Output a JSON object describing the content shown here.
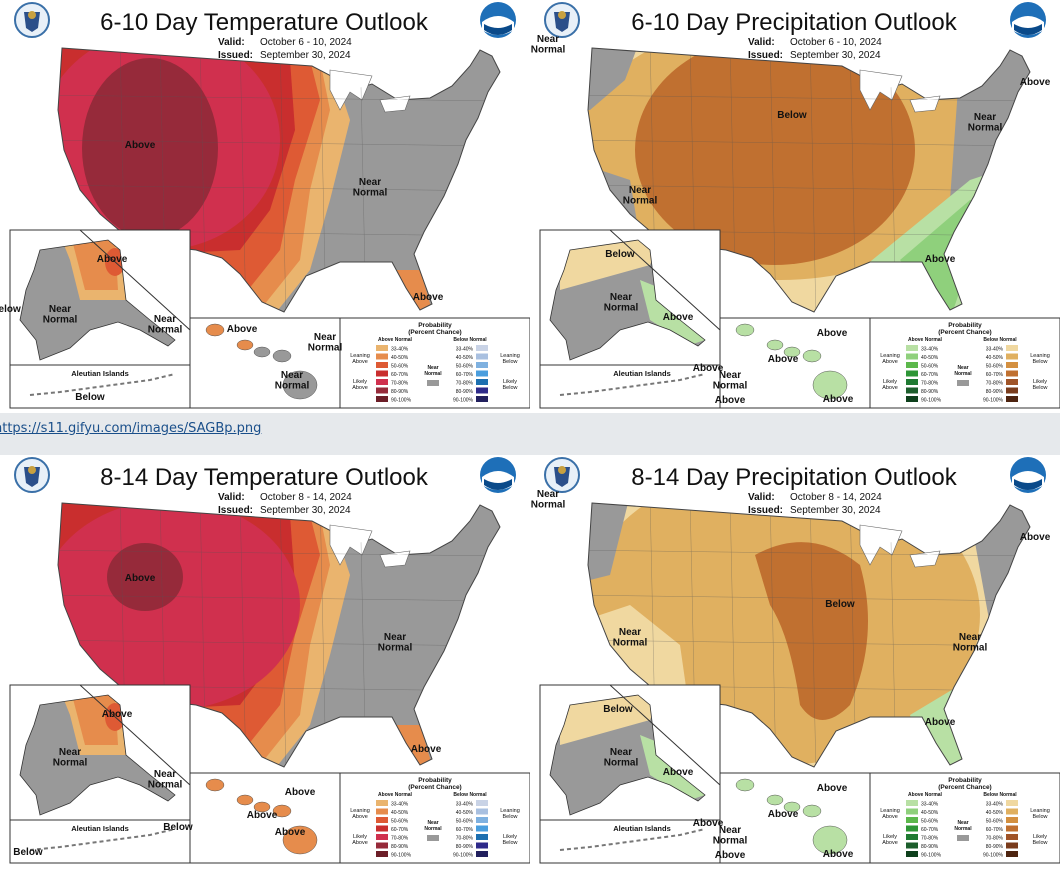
{
  "link": {
    "url": "https://s11.gifyu.com/images/SAGBp.png"
  },
  "legend_common": {
    "title1": "Probability",
    "title2": "(Percent Chance)",
    "near": "Near",
    "normal": "Normal"
  },
  "panels": [
    {
      "title": "6-10 Day Temperature Outlook",
      "valid_label": "Valid:",
      "valid": "October 6 - 10, 2024",
      "issued_label": "Issued:",
      "issued": "September 30, 2024",
      "kind": "temp",
      "labels": [
        "Above",
        "Near\nNormal",
        "Above",
        "Above",
        "Below",
        "Near\nNormal",
        "Near\nNormal",
        "Aleutian Islands",
        "Below",
        "Above",
        "Near\nNormal",
        "Near\nNormal"
      ]
    },
    {
      "title": "6-10 Day Precipitation Outlook",
      "valid_label": "Valid:",
      "valid": "October 6 - 10, 2024",
      "issued_label": "Issued:",
      "issued": "September 30, 2024",
      "kind": "precip",
      "labels": [
        "Below",
        "Near\nNormal",
        "Above",
        "Near\nNormal",
        "Above",
        "Near\nNormal",
        "Below",
        "Near\nNormal",
        "Above",
        "Aleutian Islands",
        "Above",
        "Near\nNormal",
        "Above",
        "Above",
        "Above",
        "Above"
      ]
    },
    {
      "title": "8-14 Day Temperature Outlook",
      "valid_label": "Valid:",
      "valid": "October 8 - 14, 2024",
      "issued_label": "Issued:",
      "issued": "September 30, 2024",
      "kind": "temp",
      "labels": [
        "Above",
        "Near\nNormal",
        "Above",
        "Above",
        "Below",
        "Near\nNormal",
        "Near\nNormal",
        "Aleutian Islands",
        "Below",
        "Above",
        "Above",
        "Above"
      ]
    },
    {
      "title": "8-14 Day Precipitation Outlook",
      "valid_label": "Valid:",
      "valid": "October 8 - 14, 2024",
      "issued_label": "Issued:",
      "issued": "September 30, 2024",
      "kind": "precip",
      "labels": [
        "Below",
        "Near\nNormal",
        "Above",
        "Near\nNormal",
        "Above",
        "Near\nNormal",
        "Below",
        "Near\nNormal",
        "Above",
        "Aleutian Islands",
        "Above",
        "Near\nNormal",
        "Above",
        "Above",
        "Above",
        "Above"
      ]
    }
  ],
  "legends": {
    "temp": {
      "left_head": "Above Normal",
      "right_head": "Below Normal",
      "left_lean": "Leaning\nAbove",
      "left_likely": "Likely\nAbove",
      "right_lean": "Leaning\nBelow",
      "right_likely": "Likely\nBelow",
      "left_colors": [
        "#eab46e",
        "#e68c4c",
        "#de5a34",
        "#c92e2e",
        "#d0304e",
        "#962a3a",
        "#6c1e28"
      ],
      "right_colors": [
        "#c9d3e6",
        "#a9c0e0",
        "#7fb1e0",
        "#4a9ede",
        "#1d6fb0",
        "#2e2a8a",
        "#22205e"
      ]
    },
    "precip": {
      "left_head": "Above Normal",
      "right_head": "Below Normal",
      "left_lean": "Leaning\nAbove",
      "left_likely": "Likely\nAbove",
      "right_lean": "Leaning\nBelow",
      "right_likely": "Likely\nBelow",
      "left_colors": [
        "#b8e0a4",
        "#8fd07c",
        "#5cb84c",
        "#2e9636",
        "#1f7a32",
        "#1c5e2c",
        "#0e401c"
      ],
      "right_colors": [
        "#f0d8a0",
        "#e0b060",
        "#d49040",
        "#c07030",
        "#a05428",
        "#7a3c1c",
        "#4e2410"
      ]
    },
    "ranges": [
      "33-40%",
      "40-50%",
      "50-60%",
      "60-70%",
      "70-80%",
      "80-90%",
      "90-100%"
    ]
  },
  "colors": {
    "near": "#999999",
    "border": "#444444"
  }
}
